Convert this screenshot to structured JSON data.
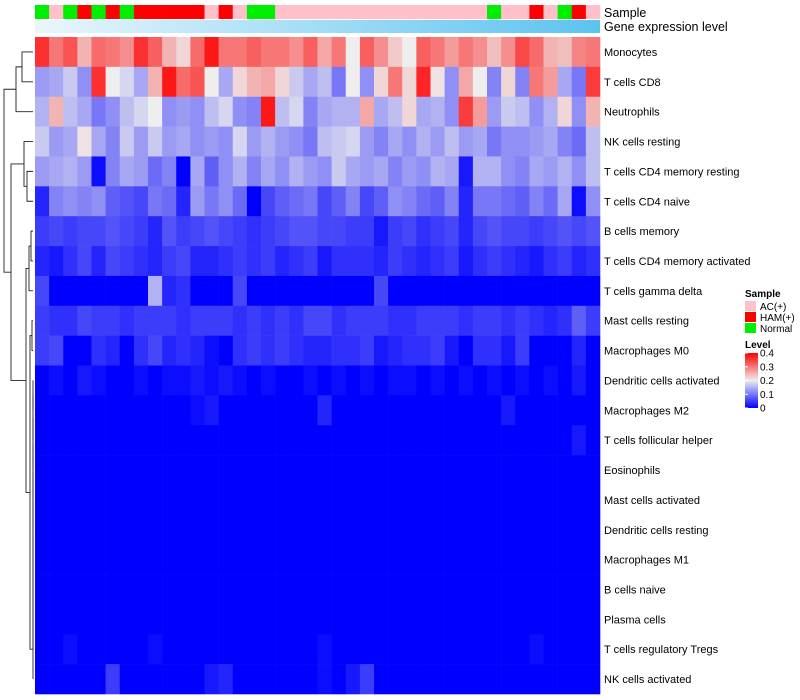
{
  "chart_data": {
    "type": "heatmap",
    "title": "",
    "annotation_labels": {
      "sample": "Sample",
      "gene": "Gene expression level"
    },
    "rows": [
      "Monocytes",
      "T cells CD8",
      "Neutrophils",
      "NK cells resting",
      "T cells CD4 memory resting",
      "T cells CD4 naive",
      "B cells memory",
      "T cells CD4 memory activated",
      "T cells gamma delta",
      "Mast cells resting",
      "Macrophages M0",
      "Dendritic cells activated",
      "Macrophages M2",
      "T cells follicular helper",
      "Eosinophils",
      "Mast cells activated",
      "Dendritic cells resting",
      "Macrophages M1",
      "B cells naive",
      "Plasma cells",
      "T cells regulatory  Tregs",
      "NK cells activated"
    ],
    "samples": [
      "N",
      "A",
      "N",
      "H",
      "N",
      "H",
      "N",
      "H",
      "H",
      "H",
      "H",
      "H",
      "A",
      "H",
      "A",
      "N",
      "N",
      "A",
      "A",
      "A",
      "A",
      "A",
      "A",
      "A",
      "A",
      "A",
      "A",
      "A",
      "A",
      "A",
      "A",
      "A",
      "N",
      "A",
      "A",
      "H",
      "A",
      "N",
      "H",
      "A"
    ],
    "values": [
      [
        0.36,
        0.3,
        0.33,
        0.25,
        0.31,
        0.3,
        0.28,
        0.36,
        0.32,
        0.25,
        0.22,
        0.31,
        0.38,
        0.3,
        0.3,
        0.32,
        0.3,
        0.3,
        0.28,
        0.32,
        0.26,
        0.3,
        0.2,
        0.32,
        0.28,
        0.23,
        0.2,
        0.32,
        0.3,
        0.27,
        0.3,
        0.28,
        0.24,
        0.28,
        0.34,
        0.31,
        0.25,
        0.24,
        0.29,
        0.3
      ],
      [
        0.13,
        0.14,
        0.17,
        0.12,
        0.36,
        0.2,
        0.18,
        0.14,
        0.25,
        0.38,
        0.31,
        0.33,
        0.2,
        0.14,
        0.22,
        0.25,
        0.26,
        0.22,
        0.17,
        0.14,
        0.16,
        0.1,
        0.2,
        0.12,
        0.22,
        0.3,
        0.22,
        0.37,
        0.21,
        0.12,
        0.26,
        0.2,
        0.11,
        0.22,
        0.11,
        0.3,
        0.27,
        0.14,
        0.1,
        0.35
      ],
      [
        0.15,
        0.25,
        0.16,
        0.14,
        0.1,
        0.12,
        0.16,
        0.18,
        0.2,
        0.12,
        0.13,
        0.12,
        0.16,
        0.18,
        0.12,
        0.11,
        0.38,
        0.16,
        0.18,
        0.11,
        0.14,
        0.15,
        0.15,
        0.26,
        0.14,
        0.16,
        0.22,
        0.14,
        0.15,
        0.12,
        0.35,
        0.27,
        0.13,
        0.17,
        0.16,
        0.12,
        0.15,
        0.22,
        0.12,
        0.25
      ],
      [
        0.17,
        0.13,
        0.14,
        0.21,
        0.14,
        0.11,
        0.17,
        0.13,
        0.17,
        0.13,
        0.14,
        0.12,
        0.13,
        0.12,
        0.18,
        0.13,
        0.15,
        0.13,
        0.12,
        0.1,
        0.16,
        0.17,
        0.18,
        0.13,
        0.11,
        0.14,
        0.12,
        0.15,
        0.13,
        0.16,
        0.13,
        0.14,
        0.1,
        0.12,
        0.12,
        0.13,
        0.14,
        0.11,
        0.09,
        0.16
      ],
      [
        0.13,
        0.14,
        0.15,
        0.13,
        0.01,
        0.11,
        0.14,
        0.13,
        0.09,
        0.11,
        0.0,
        0.14,
        0.08,
        0.12,
        0.15,
        0.11,
        0.14,
        0.12,
        0.15,
        0.13,
        0.12,
        0.17,
        0.14,
        0.13,
        0.14,
        0.11,
        0.13,
        0.12,
        0.15,
        0.14,
        0.02,
        0.15,
        0.15,
        0.12,
        0.11,
        0.14,
        0.13,
        0.15,
        0.12,
        0.16
      ],
      [
        0.03,
        0.11,
        0.12,
        0.11,
        0.12,
        0.08,
        0.07,
        0.06,
        0.1,
        0.09,
        0.03,
        0.13,
        0.1,
        0.12,
        0.09,
        0.0,
        0.06,
        0.08,
        0.09,
        0.1,
        0.06,
        0.08,
        0.11,
        0.06,
        0.08,
        0.12,
        0.11,
        0.09,
        0.08,
        0.11,
        0.03,
        0.1,
        0.1,
        0.09,
        0.08,
        0.11,
        0.09,
        0.14,
        0.01,
        0.12
      ],
      [
        0.05,
        0.06,
        0.05,
        0.06,
        0.06,
        0.07,
        0.06,
        0.05,
        0.03,
        0.07,
        0.05,
        0.06,
        0.07,
        0.06,
        0.05,
        0.04,
        0.05,
        0.06,
        0.07,
        0.07,
        0.06,
        0.06,
        0.05,
        0.05,
        0.02,
        0.05,
        0.06,
        0.04,
        0.05,
        0.06,
        0.03,
        0.06,
        0.07,
        0.06,
        0.06,
        0.05,
        0.06,
        0.07,
        0.06,
        0.07
      ],
      [
        0.03,
        0.02,
        0.04,
        0.06,
        0.03,
        0.06,
        0.05,
        0.04,
        0.03,
        0.05,
        0.06,
        0.03,
        0.03,
        0.04,
        0.05,
        0.04,
        0.05,
        0.03,
        0.04,
        0.05,
        0.02,
        0.04,
        0.04,
        0.04,
        0.03,
        0.05,
        0.04,
        0.03,
        0.04,
        0.05,
        0.02,
        0.04,
        0.05,
        0.04,
        0.03,
        0.02,
        0.04,
        0.05,
        0.03,
        0.04
      ],
      [
        0.06,
        0.0,
        0.0,
        0.0,
        0.0,
        0.0,
        0.0,
        0.0,
        0.15,
        0.03,
        0.04,
        0.0,
        0.0,
        0.0,
        0.06,
        0.0,
        0.0,
        0.0,
        0.0,
        0.0,
        0.0,
        0.0,
        0.0,
        0.0,
        0.06,
        0.0,
        0.0,
        0.0,
        0.0,
        0.0,
        0.0,
        0.0,
        0.0,
        0.0,
        0.0,
        0.0,
        0.0,
        0.0,
        0.0,
        0.0
      ],
      [
        0.05,
        0.04,
        0.04,
        0.06,
        0.05,
        0.05,
        0.04,
        0.05,
        0.05,
        0.05,
        0.04,
        0.05,
        0.05,
        0.05,
        0.04,
        0.05,
        0.04,
        0.05,
        0.04,
        0.06,
        0.06,
        0.04,
        0.05,
        0.05,
        0.05,
        0.04,
        0.04,
        0.05,
        0.05,
        0.05,
        0.04,
        0.05,
        0.05,
        0.04,
        0.05,
        0.04,
        0.03,
        0.04,
        0.08,
        0.05
      ],
      [
        0.05,
        0.06,
        0.0,
        0.0,
        0.04,
        0.03,
        0.0,
        0.04,
        0.06,
        0.03,
        0.04,
        0.03,
        0.01,
        0.0,
        0.04,
        0.05,
        0.04,
        0.05,
        0.04,
        0.03,
        0.03,
        0.04,
        0.04,
        0.05,
        0.02,
        0.03,
        0.04,
        0.04,
        0.05,
        0.02,
        0.0,
        0.04,
        0.04,
        0.02,
        0.05,
        0.0,
        0.0,
        0.0,
        0.03,
        0.0
      ],
      [
        0.0,
        0.01,
        0.0,
        0.02,
        0.01,
        0.0,
        0.0,
        0.01,
        0.0,
        0.01,
        0.01,
        0.02,
        0.01,
        0.02,
        0.01,
        0.0,
        0.01,
        0.0,
        0.0,
        0.01,
        0.0,
        0.01,
        0.0,
        0.01,
        0.0,
        0.01,
        0.01,
        0.0,
        0.01,
        0.0,
        0.01,
        0.0,
        0.01,
        0.0,
        0.01,
        0.0,
        0.01,
        0.0,
        0.02,
        0.0
      ],
      [
        0.0,
        0.0,
        0.0,
        0.0,
        0.0,
        0.0,
        0.0,
        0.0,
        0.0,
        0.0,
        0.0,
        0.01,
        0.02,
        0.0,
        0.0,
        0.0,
        0.0,
        0.0,
        0.0,
        0.0,
        0.03,
        0.0,
        0.0,
        0.0,
        0.0,
        0.0,
        0.0,
        0.0,
        0.0,
        0.0,
        0.0,
        0.0,
        0.0,
        0.02,
        0.0,
        0.0,
        0.0,
        0.0,
        0.0,
        0.0
      ],
      [
        0.0,
        0.0,
        0.0,
        0.0,
        0.0,
        0.0,
        0.0,
        0.0,
        0.0,
        0.0,
        0.0,
        0.0,
        0.0,
        0.0,
        0.0,
        0.0,
        0.0,
        0.0,
        0.0,
        0.0,
        0.0,
        0.0,
        0.0,
        0.0,
        0.0,
        0.0,
        0.0,
        0.0,
        0.0,
        0.0,
        0.0,
        0.0,
        0.0,
        0.0,
        0.0,
        0.0,
        0.0,
        0.0,
        0.02,
        0.0
      ],
      [
        0.0,
        0.0,
        0.0,
        0.0,
        0.0,
        0.0,
        0.0,
        0.0,
        0.0,
        0.0,
        0.0,
        0.0,
        0.0,
        0.0,
        0.0,
        0.0,
        0.0,
        0.0,
        0.0,
        0.0,
        0.0,
        0.0,
        0.0,
        0.0,
        0.0,
        0.0,
        0.0,
        0.0,
        0.0,
        0.0,
        0.0,
        0.0,
        0.0,
        0.0,
        0.0,
        0.0,
        0.0,
        0.0,
        0.0,
        0.0
      ],
      [
        0.0,
        0.0,
        0.0,
        0.0,
        0.0,
        0.0,
        0.0,
        0.0,
        0.0,
        0.0,
        0.0,
        0.0,
        0.0,
        0.0,
        0.0,
        0.0,
        0.0,
        0.0,
        0.0,
        0.0,
        0.0,
        0.0,
        0.0,
        0.0,
        0.0,
        0.0,
        0.0,
        0.0,
        0.0,
        0.0,
        0.0,
        0.0,
        0.0,
        0.0,
        0.0,
        0.0,
        0.0,
        0.0,
        0.0,
        0.0
      ],
      [
        0.0,
        0.0,
        0.0,
        0.0,
        0.0,
        0.0,
        0.0,
        0.0,
        0.0,
        0.0,
        0.0,
        0.0,
        0.0,
        0.0,
        0.0,
        0.0,
        0.0,
        0.0,
        0.0,
        0.0,
        0.0,
        0.0,
        0.0,
        0.0,
        0.0,
        0.0,
        0.0,
        0.0,
        0.0,
        0.0,
        0.0,
        0.0,
        0.0,
        0.0,
        0.0,
        0.0,
        0.0,
        0.0,
        0.0,
        0.0
      ],
      [
        0.0,
        0.0,
        0.0,
        0.0,
        0.0,
        0.0,
        0.0,
        0.0,
        0.0,
        0.0,
        0.0,
        0.0,
        0.0,
        0.0,
        0.0,
        0.0,
        0.0,
        0.0,
        0.0,
        0.0,
        0.0,
        0.0,
        0.0,
        0.0,
        0.0,
        0.0,
        0.0,
        0.0,
        0.0,
        0.0,
        0.0,
        0.0,
        0.0,
        0.0,
        0.0,
        0.0,
        0.0,
        0.0,
        0.0,
        0.0
      ],
      [
        0.0,
        0.0,
        0.0,
        0.0,
        0.0,
        0.0,
        0.0,
        0.0,
        0.0,
        0.0,
        0.0,
        0.0,
        0.0,
        0.0,
        0.0,
        0.0,
        0.0,
        0.0,
        0.0,
        0.0,
        0.0,
        0.0,
        0.0,
        0.0,
        0.0,
        0.0,
        0.0,
        0.0,
        0.0,
        0.0,
        0.0,
        0.0,
        0.0,
        0.0,
        0.0,
        0.0,
        0.0,
        0.0,
        0.0,
        0.0
      ],
      [
        0.0,
        0.0,
        0.0,
        0.0,
        0.0,
        0.0,
        0.0,
        0.0,
        0.0,
        0.0,
        0.0,
        0.0,
        0.0,
        0.0,
        0.0,
        0.0,
        0.0,
        0.0,
        0.0,
        0.0,
        0.0,
        0.0,
        0.0,
        0.0,
        0.0,
        0.0,
        0.0,
        0.0,
        0.0,
        0.0,
        0.0,
        0.0,
        0.0,
        0.0,
        0.0,
        0.0,
        0.0,
        0.0,
        0.0,
        0.0
      ],
      [
        0.0,
        0.0,
        0.01,
        0.0,
        0.0,
        0.0,
        0.0,
        0.0,
        0.01,
        0.0,
        0.0,
        0.0,
        0.0,
        0.0,
        0.0,
        0.0,
        0.0,
        0.0,
        0.0,
        0.0,
        0.01,
        0.0,
        0.0,
        0.0,
        0.0,
        0.0,
        0.0,
        0.0,
        0.0,
        0.0,
        0.0,
        0.0,
        0.0,
        0.0,
        0.0,
        0.01,
        0.0,
        0.0,
        0.0,
        0.0
      ],
      [
        0.0,
        0.0,
        0.0,
        0.0,
        0.0,
        0.05,
        0.0,
        0.0,
        0.0,
        0.0,
        0.0,
        0.0,
        0.02,
        0.03,
        0.0,
        0.0,
        0.0,
        0.0,
        0.0,
        0.0,
        0.01,
        0.0,
        0.02,
        0.05,
        0.0,
        0.0,
        0.0,
        0.0,
        0.0,
        0.0,
        0.0,
        0.0,
        0.0,
        0.0,
        0.0,
        0.0,
        0.0,
        0.0,
        0.0,
        0.0
      ]
    ],
    "legend": {
      "sample_title": "Sample",
      "sample_keys": [
        "A",
        "H",
        "N"
      ],
      "sample_labels": [
        "AC(+)",
        "HAM(+)",
        "Normal"
      ],
      "sample_colors": [
        "#FFC0CB",
        "#FF0000",
        "#00EE00"
      ],
      "level_title": "Level",
      "level_ticks": [
        0.4,
        0.3,
        0.2,
        0.1,
        0
      ],
      "level_tick_labels": [
        "0.4",
        "0.3",
        "0.2",
        "0.1",
        "0"
      ]
    },
    "gradient_colors": [
      "#0000FF",
      "#EEEEEE",
      "#FF0000"
    ],
    "vmin": 0,
    "vmax": 0.4,
    "gene_bar_colors": [
      "#E6F4FB",
      "#5BC3F0"
    ]
  }
}
